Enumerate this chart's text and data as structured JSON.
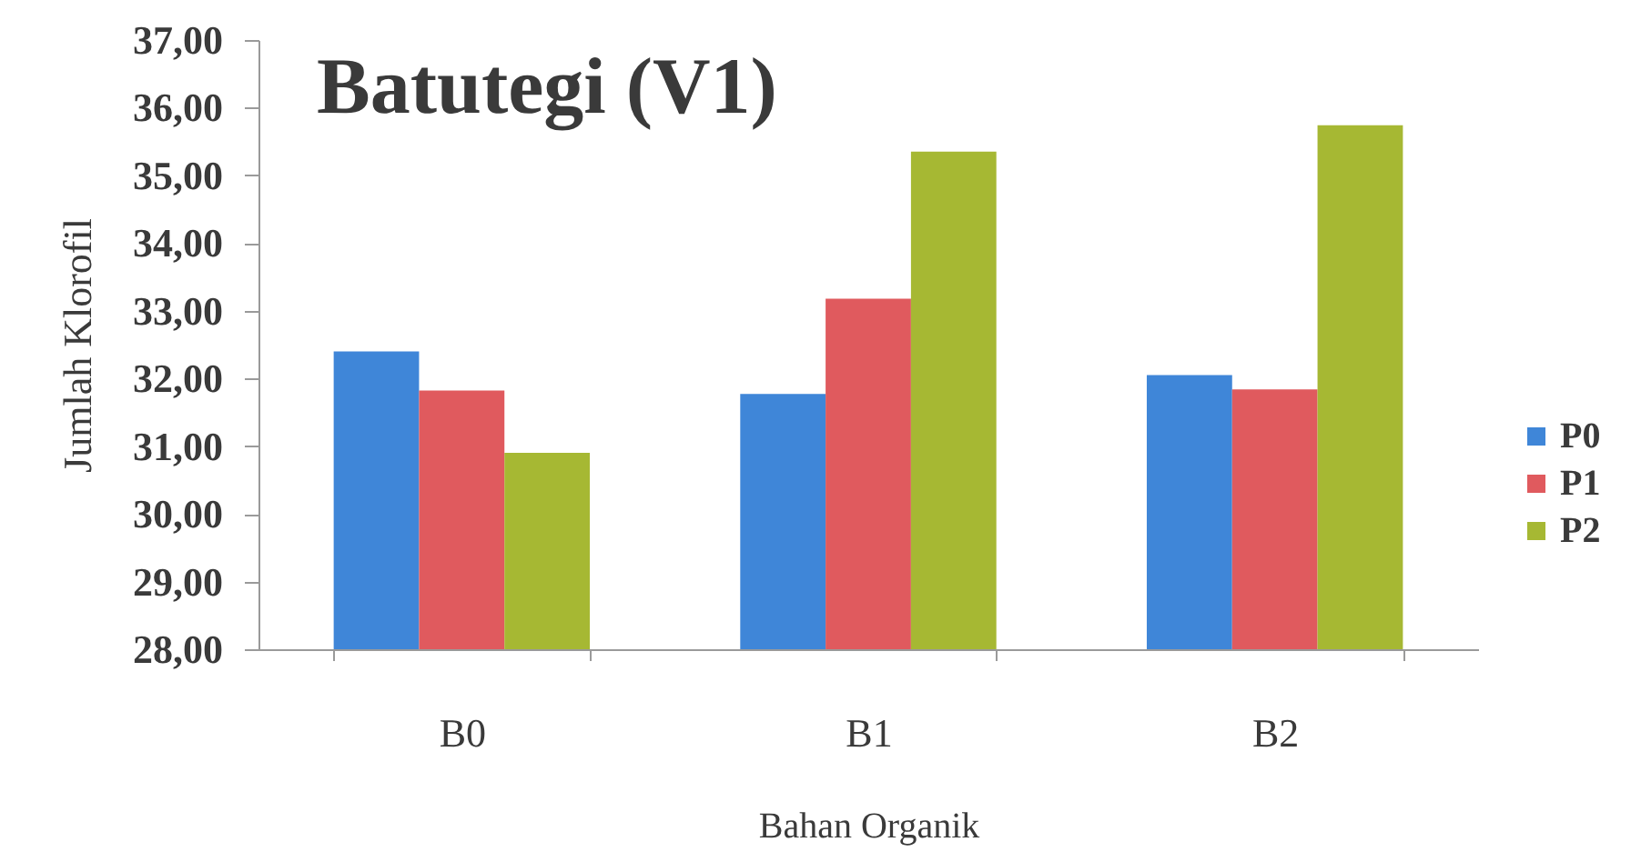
{
  "chart_data": {
    "type": "bar",
    "title": "Batutegi (V1)",
    "xlabel": "Bahan Organik",
    "ylabel": "Jumlah Klorofil",
    "categories": [
      "B0",
      "B1",
      "B2"
    ],
    "series": [
      {
        "name": "P0",
        "color": "#3f86d8",
        "values": [
          32.4,
          31.77,
          32.05
        ]
      },
      {
        "name": "P1",
        "color": "#e05a5e",
        "values": [
          31.82,
          33.18,
          31.84
        ]
      },
      {
        "name": "P2",
        "color": "#a6b833",
        "values": [
          30.9,
          35.35,
          35.74
        ]
      }
    ],
    "ylim": [
      28,
      37
    ],
    "yticks": [
      {
        "value": 28,
        "label": "28,00"
      },
      {
        "value": 29,
        "label": "29,00"
      },
      {
        "value": 30,
        "label": "30,00"
      },
      {
        "value": 31,
        "label": "31,00"
      },
      {
        "value": 32,
        "label": "32,00"
      },
      {
        "value": 33,
        "label": "33,00"
      },
      {
        "value": 34,
        "label": "34,00"
      },
      {
        "value": 35,
        "label": "35,00"
      },
      {
        "value": 36,
        "label": "36,00"
      },
      {
        "value": 37,
        "label": "37,00"
      }
    ],
    "grid": false,
    "legend": "right"
  }
}
